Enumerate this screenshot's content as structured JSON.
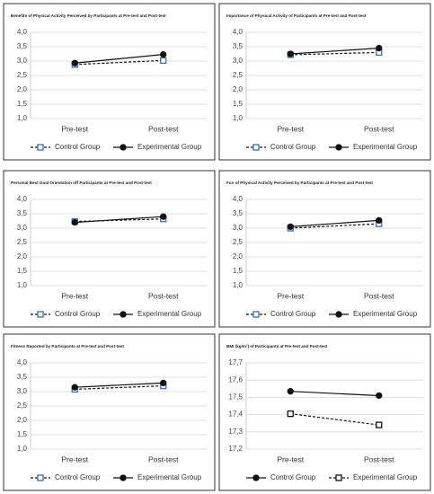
{
  "chart_data": [
    {
      "type": "line",
      "title": "Benefits of Physical Activity Perceived by Participants at Pre-test and Post-test",
      "categories": [
        "Pre-test",
        "Post-test"
      ],
      "series": [
        {
          "name": "Control Group",
          "color": "#3a6fb0",
          "line": "dashed",
          "marker": "square",
          "marker_fill": "#ffffff",
          "values": [
            2.88,
            3.02
          ]
        },
        {
          "name": "Experimental Group",
          "color": "#111111",
          "line": "solid",
          "marker": "circle",
          "marker_fill": "#111111",
          "values": [
            2.93,
            3.23
          ]
        }
      ],
      "ylim": [
        1,
        4
      ],
      "yticks": [
        {
          "value": 1,
          "label": "1,0"
        },
        {
          "value": 1.5,
          "label": "1,5"
        },
        {
          "value": 2,
          "label": "2,0"
        },
        {
          "value": 2.5,
          "label": "2,5"
        },
        {
          "value": 3,
          "label": "3,0"
        },
        {
          "value": 3.5,
          "label": "3,5"
        },
        {
          "value": 4,
          "label": "4,0"
        }
      ],
      "grid": true
    },
    {
      "type": "line",
      "title": "Importance of Physical Activity of Participants at Pre-test and Post-test",
      "categories": [
        "Pre-test",
        "Post-test"
      ],
      "series": [
        {
          "name": "Control Group",
          "color": "#3a6fb0",
          "line": "dashed",
          "marker": "square",
          "marker_fill": "#ffffff",
          "values": [
            3.22,
            3.3
          ]
        },
        {
          "name": "Experimental Group",
          "color": "#111111",
          "line": "solid",
          "marker": "circle",
          "marker_fill": "#111111",
          "values": [
            3.25,
            3.45
          ]
        }
      ],
      "ylim": [
        1,
        4
      ],
      "yticks": [
        {
          "value": 1,
          "label": "1,0"
        },
        {
          "value": 1.5,
          "label": "1,5"
        },
        {
          "value": 2,
          "label": "2,0"
        },
        {
          "value": 2.5,
          "label": "2,5"
        },
        {
          "value": 3,
          "label": "3,0"
        },
        {
          "value": 3.5,
          "label": "3,5"
        },
        {
          "value": 4,
          "label": "4,0"
        }
      ],
      "grid": true
    },
    {
      "type": "line",
      "title": "Personal Best Goal Orientation off Participants at Pre-test and Post-test",
      "categories": [
        "Pre-test",
        "Post-test"
      ],
      "series": [
        {
          "name": "Control Group",
          "color": "#3a6fb0",
          "line": "dashed",
          "marker": "square",
          "marker_fill": "#ffffff",
          "values": [
            3.23,
            3.32
          ]
        },
        {
          "name": "Experimental Group",
          "color": "#111111",
          "line": "solid",
          "marker": "circle",
          "marker_fill": "#111111",
          "values": [
            3.2,
            3.4
          ]
        }
      ],
      "ylim": [
        1,
        4
      ],
      "yticks": [
        {
          "value": 1,
          "label": "1,0"
        },
        {
          "value": 1.5,
          "label": "1,5"
        },
        {
          "value": 2,
          "label": "2,0"
        },
        {
          "value": 2.5,
          "label": "2,5"
        },
        {
          "value": 3,
          "label": "3,0"
        },
        {
          "value": 3.5,
          "label": "3,5"
        },
        {
          "value": 4,
          "label": "4,0"
        }
      ],
      "grid": true
    },
    {
      "type": "line",
      "title": "Fun of Physical Activity Perceived by Participants at Pre-test and Post-test",
      "categories": [
        "Pre-test",
        "Post-test"
      ],
      "series": [
        {
          "name": "Control Group",
          "color": "#3a6fb0",
          "line": "dashed",
          "marker": "square",
          "marker_fill": "#ffffff",
          "values": [
            3.0,
            3.15
          ]
        },
        {
          "name": "Experimental Group",
          "color": "#111111",
          "line": "solid",
          "marker": "circle",
          "marker_fill": "#111111",
          "values": [
            3.05,
            3.27
          ]
        }
      ],
      "ylim": [
        1,
        4
      ],
      "yticks": [
        {
          "value": 1,
          "label": "1,0"
        },
        {
          "value": 1.5,
          "label": "1,5"
        },
        {
          "value": 2,
          "label": "2,0"
        },
        {
          "value": 2.5,
          "label": "2,5"
        },
        {
          "value": 3,
          "label": "3,0"
        },
        {
          "value": 3.5,
          "label": "3,5"
        },
        {
          "value": 4,
          "label": "4,0"
        }
      ],
      "grid": true
    },
    {
      "type": "line",
      "title": "Fitness Reported by Participants at Pre-test and Post-test",
      "categories": [
        "Pre-test",
        "Post-test"
      ],
      "series": [
        {
          "name": "Control Group",
          "color": "#3a6fb0",
          "line": "dashed",
          "marker": "square",
          "marker_fill": "#ffffff",
          "values": [
            3.08,
            3.2
          ]
        },
        {
          "name": "Experimental Group",
          "color": "#111111",
          "line": "solid",
          "marker": "circle",
          "marker_fill": "#111111",
          "values": [
            3.15,
            3.3
          ]
        }
      ],
      "ylim": [
        1,
        4
      ],
      "yticks": [
        {
          "value": 1,
          "label": "1,0"
        },
        {
          "value": 1.5,
          "label": "1,5"
        },
        {
          "value": 2,
          "label": "2,0"
        },
        {
          "value": 2.5,
          "label": "2,5"
        },
        {
          "value": 3,
          "label": "3,0"
        },
        {
          "value": 3.5,
          "label": "3,5"
        },
        {
          "value": 4,
          "label": "4,0"
        }
      ],
      "grid": true
    },
    {
      "type": "line",
      "title": "BMI (kg/m²) of Participants at Pre-test and Post-test",
      "categories": [
        "Pre-test",
        "Post-test"
      ],
      "series": [
        {
          "name": "Control Group",
          "color": "#111111",
          "line": "solid",
          "marker": "circle",
          "marker_fill": "#111111",
          "values": [
            17.535,
            17.51
          ]
        },
        {
          "name": "Experimental Group",
          "color": "#111111",
          "line": "dashed",
          "marker": "square",
          "marker_fill": "#ffffff",
          "values": [
            17.405,
            17.34
          ]
        }
      ],
      "ylim": [
        17.2,
        17.7
      ],
      "yticks": [
        {
          "value": 17.2,
          "label": "17,2"
        },
        {
          "value": 17.3,
          "label": "17,3"
        },
        {
          "value": 17.4,
          "label": "17,4"
        },
        {
          "value": 17.5,
          "label": "17,5"
        },
        {
          "value": 17.6,
          "label": "17,6"
        },
        {
          "value": 17.7,
          "label": "17,7"
        }
      ],
      "grid": true
    }
  ]
}
